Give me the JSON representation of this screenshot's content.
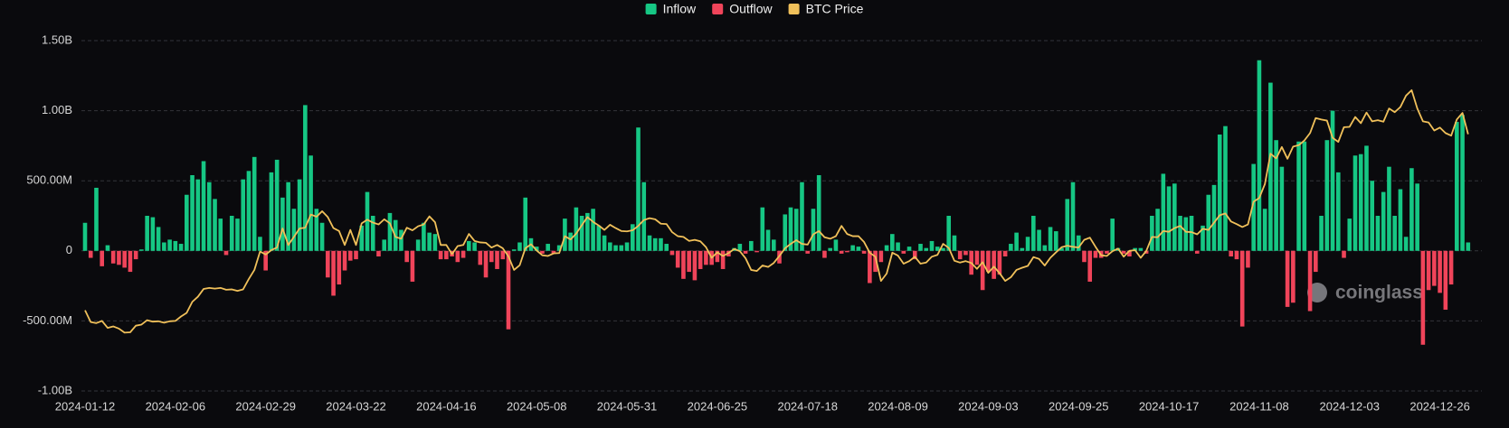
{
  "chart_data": {
    "type": "bar",
    "watermark": "coinglass",
    "ylim": [
      -1000,
      1500
    ],
    "yticks": [
      {
        "value": 1500,
        "label": "1.50B"
      },
      {
        "value": 1000,
        "label": "1.00B"
      },
      {
        "value": 500,
        "label": "500.00M"
      },
      0,
      {
        "value": -500,
        "label": "-500.00M"
      },
      {
        "value": -1000,
        "label": "-1.00B"
      }
    ],
    "y2lim": [
      24000,
      119500
    ],
    "grid": true,
    "legend": "top",
    "categories": [
      "2024-01-12",
      null,
      null,
      null,
      null,
      null,
      null,
      null,
      null,
      null,
      null,
      null,
      null,
      null,
      null,
      null,
      "2024-02-06",
      null,
      null,
      null,
      null,
      null,
      null,
      null,
      null,
      null,
      null,
      null,
      null,
      null,
      null,
      null,
      "2024-02-29",
      null,
      null,
      null,
      null,
      null,
      null,
      null,
      null,
      null,
      null,
      null,
      null,
      null,
      null,
      null,
      "2024-03-22",
      null,
      null,
      null,
      null,
      null,
      null,
      null,
      null,
      null,
      null,
      null,
      null,
      null,
      null,
      null,
      "2024-04-16",
      null,
      null,
      null,
      null,
      null,
      null,
      null,
      null,
      null,
      null,
      null,
      null,
      null,
      null,
      null,
      "2024-05-08",
      null,
      null,
      null,
      null,
      null,
      null,
      null,
      null,
      null,
      null,
      null,
      null,
      null,
      null,
      null,
      "2024-05-31",
      null,
      null,
      null,
      null,
      null,
      null,
      null,
      null,
      null,
      null,
      null,
      null,
      null,
      null,
      null,
      "2024-06-25",
      null,
      null,
      null,
      null,
      null,
      null,
      null,
      null,
      null,
      null,
      null,
      null,
      null,
      null,
      null,
      "2024-07-18",
      null,
      null,
      null,
      null,
      null,
      null,
      null,
      null,
      null,
      null,
      null,
      null,
      null,
      null,
      null,
      "2024-08-09",
      null,
      null,
      null,
      null,
      null,
      null,
      null,
      null,
      null,
      null,
      null,
      null,
      null,
      null,
      null,
      "2024-09-03",
      null,
      null,
      null,
      null,
      null,
      null,
      null,
      null,
      null,
      null,
      null,
      null,
      null,
      null,
      null,
      "2024-09-25",
      null,
      null,
      null,
      null,
      null,
      null,
      null,
      null,
      null,
      null,
      null,
      null,
      null,
      null,
      null,
      "2024-10-17",
      null,
      null,
      null,
      null,
      null,
      null,
      null,
      null,
      null,
      null,
      null,
      null,
      null,
      null,
      null,
      "2024-11-08",
      null,
      null,
      null,
      null,
      null,
      null,
      null,
      null,
      null,
      null,
      null,
      null,
      null,
      null,
      null,
      "2024-12-03",
      null,
      null,
      null,
      null,
      null,
      null,
      null,
      null,
      null,
      null,
      null,
      null,
      null,
      null,
      null,
      "2024-12-26",
      null,
      null,
      null,
      null,
      null
    ],
    "series": [
      {
        "name": "Inflow",
        "color": "#16c784",
        "type": "bar",
        "values": [
          200,
          null,
          450,
          null,
          40,
          null,
          null,
          null,
          null,
          null,
          10,
          250,
          240,
          170,
          60,
          80,
          70,
          50,
          400,
          540,
          510,
          640,
          490,
          370,
          230,
          null,
          250,
          230,
          510,
          570,
          670,
          100,
          null,
          560,
          650,
          380,
          490,
          300,
          510,
          1040,
          680,
          300,
          200,
          null,
          null,
          null,
          null,
          null,
          null,
          180,
          420,
          250,
          null,
          80,
          270,
          220,
          150,
          null,
          null,
          80,
          200,
          130,
          120,
          null,
          null,
          null,
          null,
          null,
          70,
          60,
          null,
          null,
          null,
          null,
          null,
          null,
          10,
          60,
          380,
          90,
          30,
          null,
          50,
          null,
          40,
          230,
          130,
          310,
          250,
          270,
          300,
          180,
          110,
          60,
          40,
          40,
          60,
          190,
          880,
          490,
          110,
          90,
          90,
          50,
          null,
          null,
          null,
          null,
          null,
          null,
          null,
          null,
          null,
          null,
          null,
          20,
          50,
          null,
          70,
          null,
          310,
          150,
          80,
          null,
          260,
          310,
          300,
          490,
          null,
          300,
          540,
          null,
          20,
          80,
          null,
          null,
          40,
          30,
          null,
          null,
          null,
          null,
          40,
          120,
          60,
          null,
          30,
          null,
          50,
          20,
          70,
          30,
          20,
          250,
          110,
          null,
          null,
          null,
          null,
          null,
          null,
          null,
          null,
          null,
          50,
          130,
          20,
          100,
          250,
          150,
          40,
          170,
          140,
          20,
          370,
          490,
          110,
          null,
          null,
          null,
          null,
          null,
          230,
          20,
          null,
          null,
          20,
          20,
          null,
          250,
          300,
          550,
          460,
          480,
          250,
          240,
          250,
          null,
          180,
          400,
          470,
          830,
          890,
          null,
          null,
          null,
          null,
          620,
          1360,
          300,
          1200,
          790,
          600,
          null,
          null,
          780,
          780,
          null,
          null,
          250,
          790,
          1000,
          560,
          null,
          230,
          680,
          690,
          750,
          500,
          250,
          420,
          600,
          250,
          440,
          100,
          590,
          480,
          null,
          null,
          null,
          null,
          null,
          null,
          920,
          970,
          60
        ]
      },
      {
        "name": "Outflow",
        "color": "#f0445a",
        "type": "bar",
        "values": [
          null,
          -50,
          null,
          -110,
          null,
          -90,
          -100,
          -120,
          -150,
          -60,
          null,
          null,
          null,
          null,
          null,
          null,
          null,
          null,
          null,
          null,
          null,
          null,
          null,
          null,
          null,
          -30,
          null,
          null,
          null,
          null,
          null,
          null,
          -140,
          null,
          null,
          null,
          null,
          null,
          null,
          null,
          null,
          null,
          null,
          -190,
          -320,
          -240,
          -140,
          -70,
          -60,
          null,
          null,
          null,
          -40,
          null,
          null,
          null,
          null,
          -80,
          -220,
          null,
          null,
          null,
          null,
          -60,
          -60,
          -40,
          -80,
          -50,
          null,
          null,
          -100,
          -190,
          -80,
          -130,
          -60,
          -560,
          null,
          null,
          null,
          null,
          null,
          -20,
          null,
          -20,
          null,
          null,
          null,
          null,
          null,
          null,
          null,
          null,
          null,
          null,
          null,
          null,
          null,
          null,
          null,
          null,
          null,
          null,
          null,
          null,
          -30,
          -120,
          -200,
          -150,
          -210,
          -130,
          -100,
          -100,
          -80,
          -130,
          -40,
          null,
          null,
          -20,
          null,
          -10,
          null,
          null,
          null,
          -90,
          null,
          null,
          null,
          null,
          -20,
          null,
          null,
          -50,
          null,
          null,
          -20,
          -10,
          null,
          null,
          -20,
          -230,
          -150,
          -80,
          null,
          null,
          null,
          -20,
          null,
          -60,
          null,
          null,
          null,
          null,
          null,
          null,
          null,
          -60,
          -30,
          -170,
          -100,
          -280,
          -150,
          -200,
          -170,
          -40,
          null,
          null,
          null,
          null,
          null,
          null,
          null,
          null,
          null,
          null,
          null,
          null,
          null,
          -80,
          -220,
          -50,
          -50,
          -20,
          null,
          null,
          -20,
          -40,
          null,
          null,
          -20,
          null,
          null,
          null,
          null,
          null,
          null,
          null,
          null,
          -20,
          null,
          null,
          null,
          null,
          null,
          -40,
          -60,
          -540,
          -120,
          null,
          null,
          null,
          null,
          null,
          null,
          -400,
          -370,
          null,
          null,
          -430,
          -150,
          null,
          null,
          null,
          null,
          -50,
          null,
          null,
          null,
          null,
          null,
          null,
          null,
          null,
          null,
          null,
          null,
          null,
          null,
          -670,
          -280,
          -250,
          -300,
          -420,
          -240,
          null,
          null,
          null
        ]
      },
      {
        "name": "BTC Price",
        "color": "#f0c05a",
        "type": "line",
        "axis": "y2",
        "values": [
          46000,
          42800,
          42500,
          43100,
          41200,
          41600,
          41000,
          39900,
          40000,
          41800,
          42100,
          43300,
          42900,
          43000,
          42600,
          43000,
          43100,
          44300,
          45300,
          48300,
          49700,
          51800,
          52100,
          51900,
          52100,
          51600,
          51700,
          51300,
          51700,
          54500,
          57000,
          62000,
          61200,
          62400,
          63100,
          68300,
          63800,
          66000,
          68300,
          68500,
          72100,
          71500,
          73000,
          71400,
          68400,
          67600,
          63800,
          67900,
          63800,
          69700,
          70700,
          69900,
          69400,
          70800,
          69700,
          66000,
          65500,
          68500,
          67800,
          68900,
          69400,
          71600,
          70000,
          63800,
          63800,
          61300,
          63500,
          63800,
          66800,
          64900,
          64500,
          64400,
          63100,
          63800,
          62900,
          60700,
          57000,
          58300,
          62900,
          64000,
          62300,
          61000,
          60800,
          61500,
          61600,
          66200,
          65300,
          66900,
          69200,
          71400,
          70100,
          69100,
          67900,
          69300,
          68400,
          67600,
          67500,
          67800,
          69000,
          70600,
          71100,
          70800,
          69600,
          69500,
          67300,
          66200,
          66000,
          64900,
          65200,
          64800,
          63200,
          60300,
          61800,
          60800,
          61600,
          62700,
          62100,
          60200,
          57000,
          56700,
          58200,
          57800,
          58900,
          60800,
          62900,
          64100,
          65100,
          64100,
          63900,
          66700,
          67600,
          65900,
          65500,
          66200,
          69000,
          66800,
          66200,
          66200,
          64600,
          61700,
          60600,
          54000,
          56000,
          61700,
          60900,
          58700,
          59400,
          60600,
          58700,
          59000,
          60600,
          61100,
          64100,
          63000,
          59500,
          59000,
          59400,
          58900,
          57300,
          59100,
          56200,
          57900,
          56100,
          54000,
          55000,
          57000,
          57600,
          58100,
          60500,
          60000,
          58200,
          60300,
          61800,
          63200,
          63600,
          63300,
          63100,
          65200,
          65800,
          63300,
          61000,
          60800,
          62100,
          62800,
          60600,
          62200,
          62400,
          60300,
          62200,
          66000,
          65900,
          67600,
          67400,
          68400,
          69000,
          67400,
          67300,
          66700,
          68200,
          67900,
          69900,
          71900,
          72400,
          70200,
          69500,
          68700,
          69400,
          75600,
          76600,
          80400,
          88700,
          87400,
          90500,
          87300,
          90600,
          91000,
          92300,
          94300,
          98400,
          98000,
          97700,
          93000,
          91900,
          95900,
          96000,
          98700,
          97000,
          99900,
          97500,
          97800,
          97400,
          101000,
          100000,
          101400,
          104500,
          106000,
          101000,
          97500,
          97200,
          95000,
          95800,
          94300,
          93600,
          98000,
          99800,
          94000
        ]
      }
    ]
  }
}
